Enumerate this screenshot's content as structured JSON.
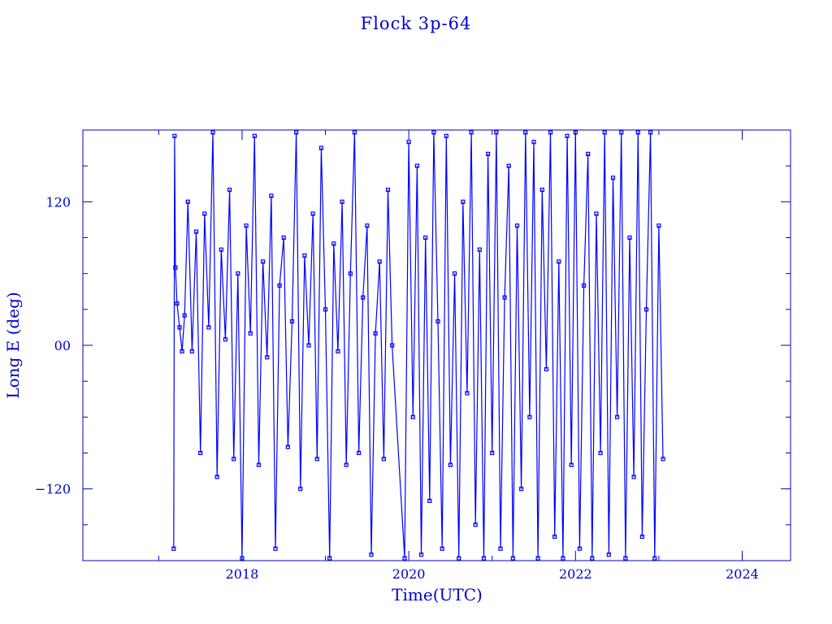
{
  "chart_data": {
    "type": "line",
    "title": "Flock 3p-64",
    "xlabel": "Time(UTC)",
    "ylabel": "Long E (deg)",
    "xlim": [
      2016.09,
      2024.58
    ],
    "ylim": [
      -180,
      180
    ],
    "x_ticks": [
      {
        "value": 2018,
        "label": "2018"
      },
      {
        "value": 2020,
        "label": "2020"
      },
      {
        "value": 2022,
        "label": "2022"
      },
      {
        "value": 2024,
        "label": "2024"
      }
    ],
    "y_ticks": [
      {
        "value": 120,
        "label": "120"
      },
      {
        "value": 0,
        "label": "00"
      },
      {
        "value": -120,
        "label": "−120"
      }
    ],
    "grid": false,
    "color": "#0000ff",
    "axis_color": "#0000cc",
    "markers": "square",
    "series": [
      {
        "x": [
          2017.18,
          2017.19,
          2017.2,
          2017.22,
          2017.25,
          2017.28,
          2017.31,
          2017.35,
          2017.4,
          2017.45,
          2017.5,
          2017.55,
          2017.6,
          2017.65,
          2017.7,
          2017.75,
          2017.8,
          2017.85,
          2017.9,
          2017.95,
          2018.0,
          2018.05,
          2018.1,
          2018.15,
          2018.2,
          2018.25,
          2018.3,
          2018.35,
          2018.4,
          2018.45,
          2018.5,
          2018.55,
          2018.6,
          2018.65,
          2018.7,
          2018.75,
          2018.8,
          2018.85,
          2018.9,
          2018.95,
          2019.0,
          2019.05,
          2019.1,
          2019.15,
          2019.2,
          2019.25,
          2019.3,
          2019.35,
          2019.4,
          2019.45,
          2019.5,
          2019.55,
          2019.6,
          2019.65,
          2019.7,
          2019.75,
          2019.8,
          2019.95,
          2020.0,
          2020.05,
          2020.1,
          2020.15,
          2020.2,
          2020.25,
          2020.3,
          2020.35,
          2020.4,
          2020.45,
          2020.5,
          2020.55,
          2020.6,
          2020.65,
          2020.7,
          2020.75,
          2020.8,
          2020.85,
          2020.9,
          2020.95,
          2021.0,
          2021.05,
          2021.1,
          2021.15,
          2021.2,
          2021.25,
          2021.3,
          2021.35,
          2021.4,
          2021.45,
          2021.5,
          2021.55,
          2021.6,
          2021.65,
          2021.7,
          2021.75,
          2021.8,
          2021.85,
          2021.9,
          2021.95,
          2022.0,
          2022.05,
          2022.1,
          2022.15,
          2022.2,
          2022.25,
          2022.3,
          2022.35,
          2022.4,
          2022.45,
          2022.5,
          2022.55,
          2022.6,
          2022.65,
          2022.7,
          2022.75,
          2022.8,
          2022.85,
          2022.9,
          2022.95,
          2023.0,
          2023.05
        ],
        "y": [
          -170,
          175,
          65,
          35,
          15,
          -5,
          25,
          120,
          -5,
          95,
          -90,
          110,
          15,
          178,
          -110,
          80,
          5,
          130,
          -95,
          60,
          -178,
          100,
          10,
          175,
          -100,
          70,
          -10,
          125,
          -170,
          50,
          90,
          -85,
          20,
          178,
          -120,
          75,
          0,
          110,
          -95,
          165,
          30,
          -178,
          85,
          -5,
          120,
          -100,
          60,
          178,
          -90,
          40,
          100,
          -175,
          10,
          70,
          -95,
          130,
          0,
          -178,
          170,
          -60,
          150,
          -175,
          90,
          -130,
          178,
          20,
          -170,
          175,
          -100,
          60,
          -178,
          120,
          -40,
          178,
          -150,
          80,
          -178,
          160,
          -90,
          178,
          -170,
          40,
          150,
          -178,
          100,
          -120,
          178,
          -60,
          170,
          -178,
          130,
          -20,
          178,
          -160,
          70,
          -178,
          175,
          -100,
          178,
          -170,
          50,
          160,
          -178,
          110,
          -90,
          178,
          -175,
          140,
          -60,
          178,
          -178,
          90,
          -110,
          178,
          -160,
          30,
          178,
          -178,
          100,
          -95
        ]
      }
    ]
  }
}
